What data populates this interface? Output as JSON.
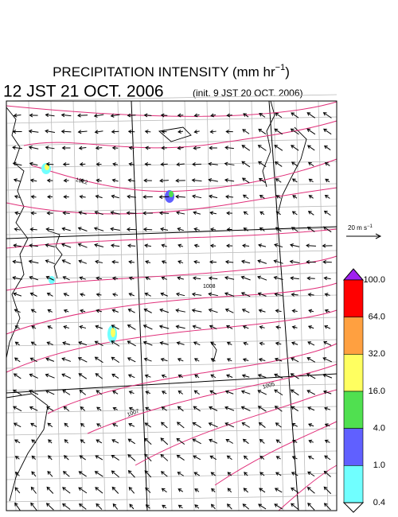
{
  "header": {
    "title_parts": [
      "PRECIPITATION INTENSITY (mm hr",
      "−1",
      ")"
    ],
    "valid_time": "12 JST 21 OCT. 2006",
    "init_time": "(init. 9 JST 20 OCT. 2006)"
  },
  "wind_scale": {
    "label_parts": [
      "20 m s",
      "−1"
    ]
  },
  "isobar_labels": [
    "1012",
    "1008",
    "1005",
    "1007"
  ],
  "colorbar": {
    "levels": [
      "100.0",
      "64.0",
      "32.0",
      "16.0",
      "4.0",
      "1.0",
      "0.4"
    ],
    "colors": [
      "#a020f0",
      "#ff0000",
      "#ffa040",
      "#ffff60",
      "#50e050",
      "#6060ff",
      "#70ffff",
      "#ffffff"
    ]
  }
}
